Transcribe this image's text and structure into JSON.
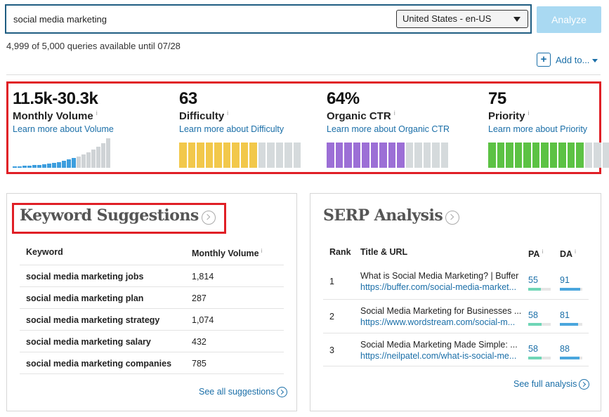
{
  "search": {
    "query": "social media marketing",
    "locale": "United States - en-US",
    "analyze_label": "Analyze",
    "quota_text": "4,999 of 5,000 queries available until 07/28",
    "add_to_label": "Add to..."
  },
  "metrics": {
    "volume": {
      "value": "11.5k-30.3k",
      "label": "Monthly Volume",
      "info": "i",
      "link": "Learn more about Volume"
    },
    "difficulty": {
      "value": "63",
      "label": "Difficulty",
      "info": "i",
      "link": "Learn more about Difficulty",
      "level_fraction": 0.63,
      "color": "#f2c84b"
    },
    "ctr": {
      "value": "64%",
      "label": "Organic CTR",
      "info": "i",
      "link": "Learn more about Organic CTR",
      "level_fraction": 0.64,
      "color": "#9c6fd6"
    },
    "priority": {
      "value": "75",
      "label": "Priority",
      "info": "i",
      "link": "Learn more about Priority",
      "level_fraction": 0.75,
      "color": "#5cc244"
    }
  },
  "keyword_suggestions": {
    "title": "Keyword Suggestions",
    "col_keyword": "Keyword",
    "col_volume": "Monthly Volume",
    "info": "i",
    "rows": [
      {
        "keyword": "social media marketing jobs",
        "volume": "1,814"
      },
      {
        "keyword": "social media marketing plan",
        "volume": "287"
      },
      {
        "keyword": "social media marketing strategy",
        "volume": "1,074"
      },
      {
        "keyword": "social media marketing salary",
        "volume": "432"
      },
      {
        "keyword": "social media marketing companies",
        "volume": "785"
      }
    ],
    "see_all": "See all suggestions"
  },
  "serp": {
    "title": "SERP Analysis",
    "col_rank": "Rank",
    "col_title": "Title & URL",
    "col_pa": "PA",
    "col_da": "DA",
    "info": "i",
    "rows": [
      {
        "rank": "1",
        "title": "What is Social Media Marketing? | Buffer",
        "url": "https://buffer.com/social-media-market...",
        "pa": "55",
        "da": "91"
      },
      {
        "rank": "2",
        "title": "Social Media Marketing for Businesses ...",
        "url": "https://www.wordstream.com/social-m...",
        "pa": "58",
        "da": "81"
      },
      {
        "rank": "3",
        "title": "Social Media Marketing Made Simple: ...",
        "url": "https://neilpatel.com/what-is-social-me...",
        "pa": "58",
        "da": "88"
      }
    ],
    "see_full": "See full analysis"
  },
  "colors": {
    "link": "#1b6fa8",
    "highlight_border": "#e01f26",
    "pa_bar": "#6fd6b6",
    "da_bar": "#4aa6dd"
  }
}
